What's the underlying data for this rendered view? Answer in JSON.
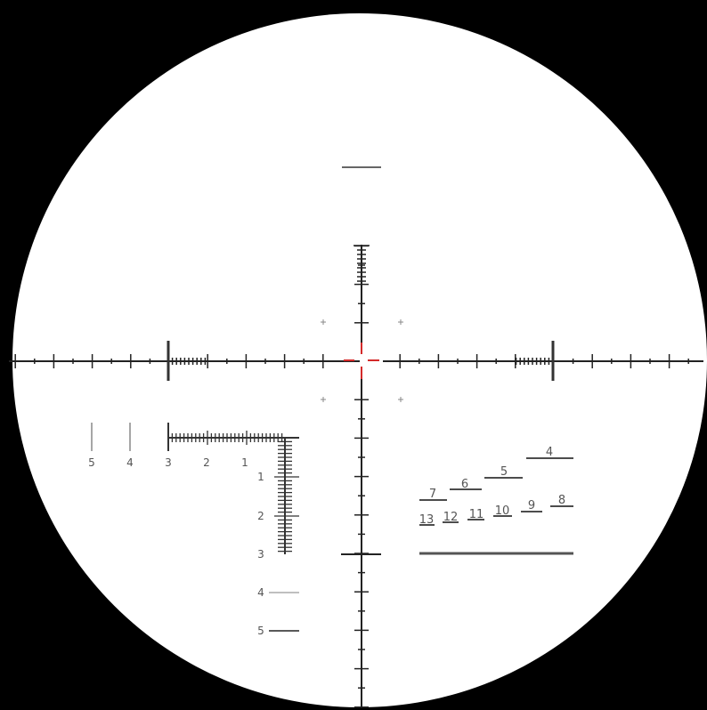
{
  "colors": {
    "background": "#000000",
    "field": "#ffffff",
    "reticle_line": "#222222",
    "center_mark": "#d42a2a",
    "label_text": "#555555",
    "guide_gray": "#888888"
  },
  "left_scale_labels": [
    "5",
    "4",
    "3",
    "2",
    "1"
  ],
  "vertical_scale_labels": [
    "1",
    "2",
    "3",
    "4",
    "5"
  ],
  "ladder_labels": [
    "4",
    "5",
    "6",
    "7",
    "8",
    "9",
    "10",
    "11",
    "12",
    "13"
  ]
}
